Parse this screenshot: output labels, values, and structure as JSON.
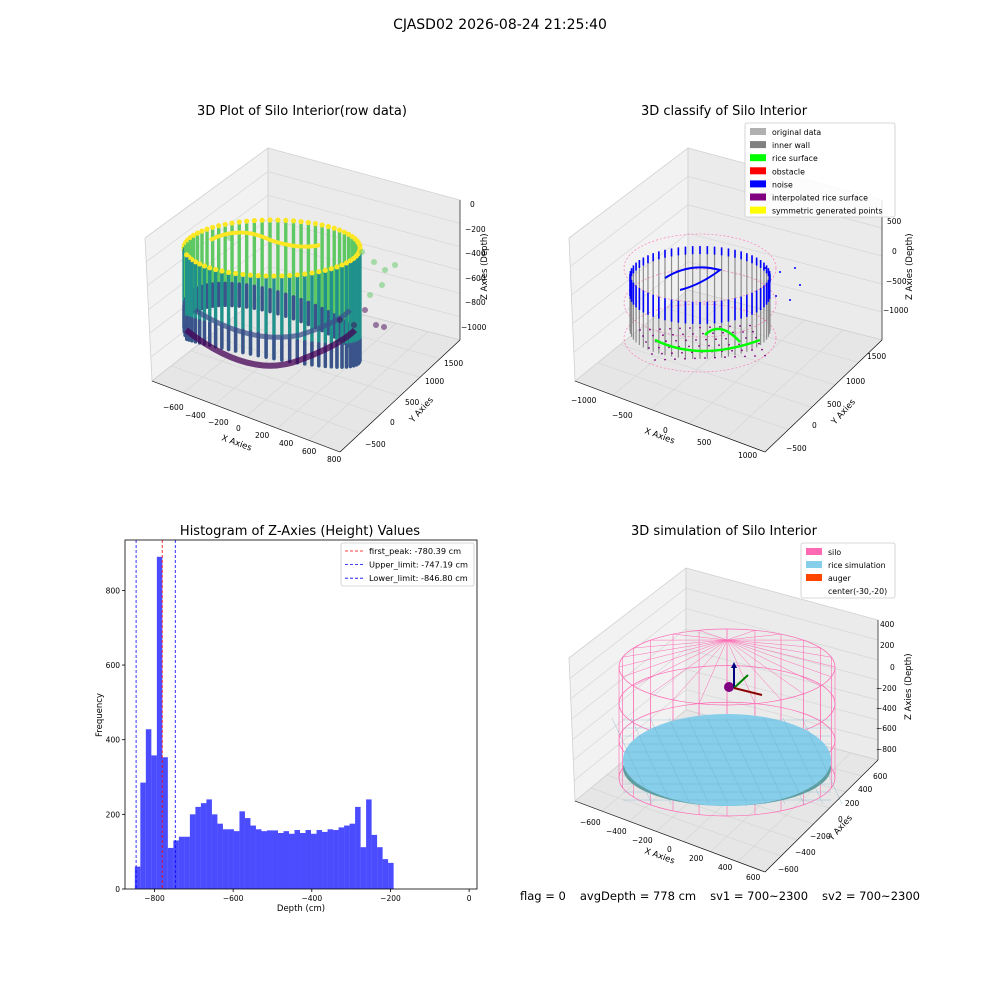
{
  "page": {
    "title": "CJASD02 2026-08-24 21:25:40"
  },
  "colors": {
    "viridis": [
      "#440154",
      "#3b528b",
      "#21918c",
      "#5ec962",
      "#fde725"
    ],
    "hist_bar": "#0000ff",
    "pane": "#f2f2f2",
    "grid": "#d9d9d9"
  },
  "panels": {
    "raw": {
      "title": "3D Plot of Silo Interior(row data)",
      "xlabel": "X Axies",
      "ylabel": "Y Axies",
      "zlabel": "Z Axies (Depth)",
      "xticks": [
        "−600",
        "−400",
        "−200",
        "0",
        "200",
        "400",
        "600",
        "800"
      ],
      "yticks": [
        "−500",
        "0",
        "500",
        "1000",
        "1500"
      ],
      "zticks": [
        "0",
        "−200",
        "−400",
        "−600",
        "−800",
        "−1000"
      ]
    },
    "classify": {
      "title": "3D classify of Silo Interior",
      "xlabel": "X Axies",
      "ylabel": "Y Axies",
      "zlabel": "Z Axies (Depth)",
      "xticks": [
        "−1000",
        "−500",
        "0",
        "500",
        "1000"
      ],
      "yticks": [
        "−500",
        "0",
        "500",
        "1000",
        "1500"
      ],
      "zticks": [
        "500",
        "0",
        "−500",
        "−1000"
      ],
      "legend": [
        {
          "label": "original data",
          "color": "#b0b0b0"
        },
        {
          "label": "inner wall",
          "color": "#808080"
        },
        {
          "label": "rice surface",
          "color": "#00ff00"
        },
        {
          "label": "obstacle",
          "color": "#ff0000"
        },
        {
          "label": "noise",
          "color": "#0000ff"
        },
        {
          "label": "interpolated rice surface",
          "color": "#800080"
        },
        {
          "label": "symmetric generated points",
          "color": "#ffff00"
        }
      ]
    },
    "simulation": {
      "title": "3D simulation of Silo Interior",
      "xlabel": "X Axies",
      "ylabel": "Y Axies",
      "zlabel": "Z Axies (Depth)",
      "xticks": [
        "−600",
        "−400",
        "−200",
        "0",
        "200",
        "400",
        "600"
      ],
      "yticks": [
        "−600",
        "−400",
        "−200",
        "0",
        "200",
        "400",
        "600"
      ],
      "zticks": [
        "400",
        "200",
        "0",
        "−200",
        "−400",
        "−600",
        "−800"
      ],
      "legend": [
        {
          "label": "silo",
          "color": "#ff69b4"
        },
        {
          "label": "rice simulation",
          "color": "#87ceeb"
        },
        {
          "label": "auger",
          "color": "#ff4500"
        },
        {
          "label": "center(-30,-20)",
          "color": "none"
        }
      ]
    }
  },
  "status": {
    "flag": "flag = 0",
    "avg_depth": "avgDepth = 778 cm",
    "sv1": "sv1 = 700~2300",
    "sv2": "sv2 = 700~2300"
  },
  "chart_data": [
    {
      "type": "scatter",
      "title": "3D Plot of Silo Interior(row data)",
      "xlabel": "X Axies",
      "ylabel": "Y Axies",
      "zlabel": "Z Axies (Depth)",
      "xlim": [
        -700,
        800
      ],
      "ylim": [
        -600,
        1600
      ],
      "zlim": [
        -1100,
        0
      ],
      "colormap": "viridis"
    },
    {
      "type": "scatter",
      "title": "3D classify of Silo Interior",
      "xlabel": "X Axies",
      "ylabel": "Y Axies",
      "zlabel": "Z Axies (Depth)",
      "xlim": [
        -1100,
        1100
      ],
      "ylim": [
        -600,
        1600
      ],
      "zlim": [
        -1100,
        500
      ],
      "legend": "top-right"
    },
    {
      "type": "bar",
      "title": "Histogram of Z-Axies (Height) Values",
      "xlabel": "Depth (cm)",
      "ylabel": "Frequency",
      "xlim": [
        -875,
        20
      ],
      "ylim": [
        0,
        935
      ],
      "xticks": [
        -800,
        -600,
        -400,
        -200,
        0
      ],
      "yticks": [
        0,
        200,
        400,
        600,
        800
      ],
      "bin_start": -850,
      "bin_width": 14,
      "values": [
        60,
        285,
        428,
        358,
        890,
        353,
        110,
        130,
        140,
        140,
        200,
        220,
        230,
        240,
        200,
        175,
        160,
        160,
        155,
        208,
        190,
        170,
        160,
        155,
        157,
        157,
        150,
        155,
        148,
        158,
        150,
        158,
        148,
        158,
        153,
        160,
        158,
        165,
        170,
        175,
        220,
        112,
        240,
        145,
        112,
        80,
        70
      ],
      "vlines": [
        {
          "label": "first_peak: -780.39 cm",
          "x": -780.39,
          "color": "#ff0000"
        },
        {
          "label": "Upper_limit: -747.19 cm",
          "x": -747.19,
          "color": "#0000ff"
        },
        {
          "label": "Lower_limit: -846.80 cm",
          "x": -846.8,
          "color": "#0000ff"
        }
      ],
      "legend": "top-right"
    },
    {
      "type": "scatter",
      "title": "3D simulation of Silo Interior",
      "xlabel": "X Axies",
      "ylabel": "Y Axies",
      "zlabel": "Z Axies (Depth)",
      "xlim": [
        -700,
        700
      ],
      "ylim": [
        -700,
        700
      ],
      "zlim": [
        -900,
        500
      ],
      "legend": "top-right"
    }
  ]
}
